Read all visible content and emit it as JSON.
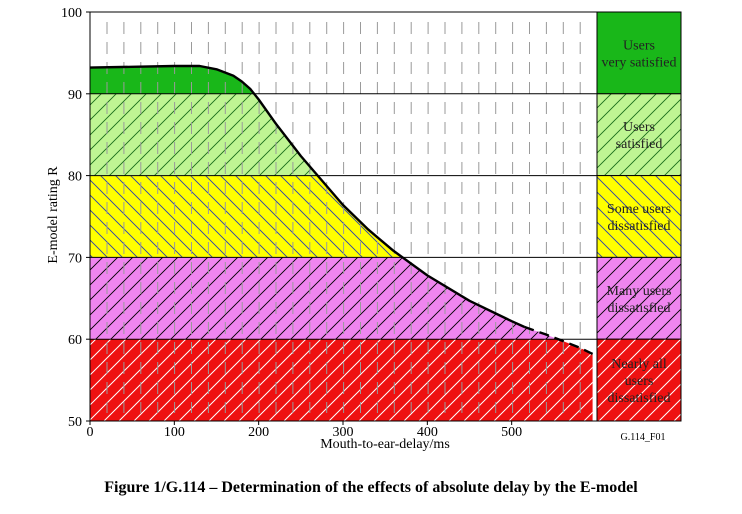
{
  "chart_data": {
    "type": "area",
    "ylabel": "E-model rating R",
    "xlabel": "Mouth-to-ear-delay/ms",
    "xlim": [
      0,
      600
    ],
    "ylim": [
      50,
      100
    ],
    "x_ticks": [
      "0",
      "100",
      "200",
      "300",
      "400",
      "500"
    ],
    "y_ticks": [
      "50",
      "60",
      "70",
      "80",
      "90",
      "100"
    ],
    "bands": [
      {
        "range": [
          90,
          100
        ],
        "label": "Users very satisfied",
        "color": "#19b719"
      },
      {
        "range": [
          80,
          90
        ],
        "label": "Users satisfied",
        "color": "#bff593"
      },
      {
        "range": [
          70,
          80
        ],
        "label": "Some users dissatisfied",
        "color": "#ffff00"
      },
      {
        "range": [
          60,
          70
        ],
        "label": "Many users dissatisfied",
        "color": "#ef85ef"
      },
      {
        "range": [
          50,
          60
        ],
        "label": "Nearly all users dissatisfied",
        "color": "#ee1111"
      }
    ],
    "series": [
      {
        "x": [
          0,
          50,
          100,
          130,
          150,
          170,
          180,
          190,
          200,
          220,
          250,
          280,
          300,
          330,
          360,
          400,
          450,
          500,
          515
        ],
        "values": [
          93.2,
          93.3,
          93.4,
          93.4,
          93.0,
          92.2,
          91.5,
          90.6,
          89.3,
          86.4,
          82.4,
          78.8,
          76.4,
          73.4,
          70.8,
          67.8,
          64.7,
          62.2,
          61.5
        ]
      },
      {
        "style": "dashed",
        "x": [
          515,
          540,
          560,
          580,
          596
        ],
        "values": [
          61.5,
          60.6,
          59.8,
          59.0,
          58.2
        ]
      }
    ]
  },
  "figure_id": "G.114_F01",
  "caption": "Figure 1/G.114 – Determination of the effects of absolute delay by the E-model"
}
